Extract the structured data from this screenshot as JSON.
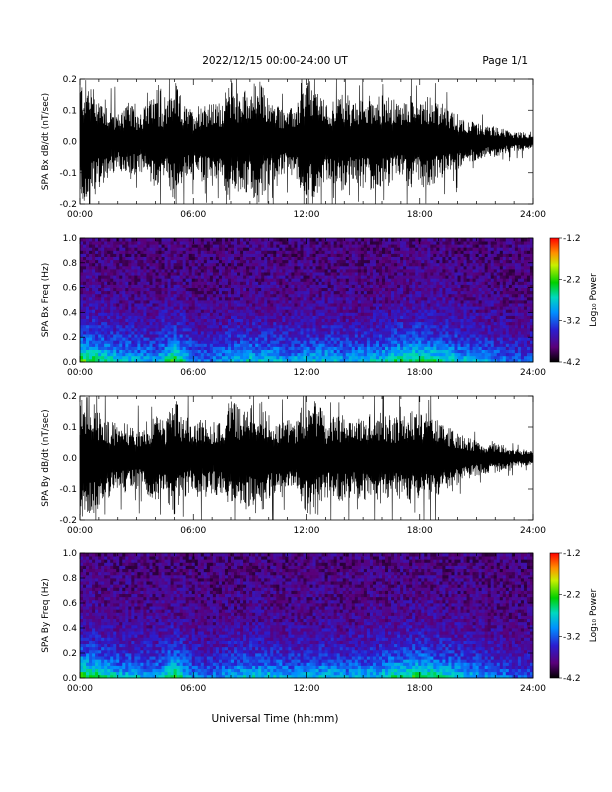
{
  "header": {
    "title": "2022/12/15  00:00-24:00 UT",
    "page": "Page 1/1"
  },
  "footer": {
    "xlabel": "Universal Time (hh:mm)"
  },
  "chart_data": [
    {
      "type": "line",
      "ylabel": "SPA Bx dB/dt (nT/sec)",
      "xlabel": "",
      "x_ticks": [
        "00:00",
        "06:00",
        "12:00",
        "18:00",
        "24:00"
      ],
      "xlim": [
        0,
        24
      ],
      "ylim": [
        -0.2,
        0.2
      ],
      "y_ticks": [
        "-0.2",
        "-0.1",
        "0.0",
        "0.1",
        "0.2"
      ],
      "series": [
        {
          "x": [
            0,
            0.5,
            1,
            1.5,
            2,
            2.5,
            3,
            3.5,
            4,
            4.5,
            5,
            5.5,
            6,
            6.5,
            7,
            7.5,
            8,
            8.5,
            9,
            9.5,
            10,
            10.5,
            11,
            11.5,
            12,
            12.5,
            13,
            13.5,
            14,
            14.5,
            15,
            15.5,
            16,
            16.5,
            17,
            17.5,
            18,
            18.5,
            19,
            19.5,
            20,
            20.5,
            21,
            21.5,
            22,
            22.5,
            23,
            23.5,
            24
          ],
          "amplitude": [
            0.2,
            0.2,
            0.15,
            0.12,
            0.09,
            0.13,
            0.1,
            0.12,
            0.15,
            0.11,
            0.2,
            0.12,
            0.1,
            0.14,
            0.12,
            0.13,
            0.2,
            0.16,
            0.18,
            0.2,
            0.14,
            0.12,
            0.1,
            0.12,
            0.2,
            0.2,
            0.12,
            0.14,
            0.16,
            0.12,
            0.14,
            0.16,
            0.15,
            0.14,
            0.12,
            0.15,
            0.14,
            0.16,
            0.12,
            0.1,
            0.09,
            0.07,
            0.06,
            0.05,
            0.05,
            0.04,
            0.03,
            0.03,
            0.02
          ]
        }
      ],
      "grid": false
    },
    {
      "type": "heatmap",
      "ylabel": "SPA Bx Freq (Hz)",
      "x_ticks": [
        "00:00",
        "06:00",
        "12:00",
        "18:00",
        "24:00"
      ],
      "xlim": [
        0,
        24
      ],
      "ylim": [
        0,
        1.0
      ],
      "y_ticks": [
        "0.0",
        "0.2",
        "0.4",
        "0.6",
        "0.8",
        "1.0"
      ],
      "colorbar": {
        "label": "Log₁₀ Power",
        "ticks": [
          "-1.2",
          "-2.2",
          "-3.2",
          "-4.2"
        ],
        "range": [
          -4.2,
          -1.2
        ]
      },
      "activity_profile": {
        "x": [
          0,
          1,
          2,
          3,
          4,
          5,
          6,
          7,
          8,
          9,
          10,
          11,
          12,
          13,
          14,
          15,
          16,
          17,
          18,
          19,
          20,
          21,
          22,
          23,
          24
        ],
        "intensity": [
          0.9,
          0.75,
          0.6,
          0.55,
          0.5,
          0.85,
          0.45,
          0.4,
          0.55,
          0.6,
          0.6,
          0.5,
          0.55,
          0.6,
          0.5,
          0.55,
          0.6,
          0.75,
          0.8,
          0.7,
          0.6,
          0.5,
          0.45,
          0.35,
          0.3
        ]
      }
    },
    {
      "type": "line",
      "ylabel": "SPA By dB/dt (nT/sec)",
      "x_ticks": [
        "00:00",
        "06:00",
        "12:00",
        "18:00",
        "24:00"
      ],
      "xlim": [
        0,
        24
      ],
      "ylim": [
        -0.2,
        0.2
      ],
      "y_ticks": [
        "-0.2",
        "-0.1",
        "0.0",
        "0.1",
        "0.2"
      ],
      "series": [
        {
          "x": [
            0,
            0.5,
            1,
            1.5,
            2,
            2.5,
            3,
            3.5,
            4,
            4.5,
            5,
            5.5,
            6,
            6.5,
            7,
            7.5,
            8,
            8.5,
            9,
            9.5,
            10,
            10.5,
            11,
            11.5,
            12,
            12.5,
            13,
            13.5,
            14,
            14.5,
            15,
            15.5,
            16,
            16.5,
            17,
            17.5,
            18,
            18.5,
            19,
            19.5,
            20,
            20.5,
            21,
            21.5,
            22,
            22.5,
            23,
            23.5,
            24
          ],
          "amplitude": [
            0.2,
            0.2,
            0.16,
            0.13,
            0.1,
            0.12,
            0.1,
            0.11,
            0.15,
            0.12,
            0.2,
            0.13,
            0.1,
            0.13,
            0.12,
            0.13,
            0.19,
            0.16,
            0.17,
            0.2,
            0.14,
            0.12,
            0.11,
            0.12,
            0.2,
            0.2,
            0.13,
            0.13,
            0.14,
            0.12,
            0.14,
            0.15,
            0.15,
            0.14,
            0.13,
            0.15,
            0.14,
            0.15,
            0.12,
            0.1,
            0.09,
            0.07,
            0.06,
            0.05,
            0.05,
            0.04,
            0.03,
            0.03,
            0.02
          ]
        }
      ],
      "grid": false
    },
    {
      "type": "heatmap",
      "ylabel": "SPA By Freq (Hz)",
      "x_ticks": [
        "00:00",
        "06:00",
        "12:00",
        "18:00",
        "24:00"
      ],
      "xlim": [
        0,
        24
      ],
      "ylim": [
        0,
        1.0
      ],
      "y_ticks": [
        "0.0",
        "0.2",
        "0.4",
        "0.6",
        "0.8",
        "1.0"
      ],
      "colorbar": {
        "label": "Log₁₀ Power",
        "ticks": [
          "-1.2",
          "-2.2",
          "-3.2",
          "-4.2"
        ],
        "range": [
          -4.2,
          -1.2
        ]
      },
      "activity_profile": {
        "x": [
          0,
          1,
          2,
          3,
          4,
          5,
          6,
          7,
          8,
          9,
          10,
          11,
          12,
          13,
          14,
          15,
          16,
          17,
          18,
          19,
          20,
          21,
          22,
          23,
          24
        ],
        "intensity": [
          0.9,
          0.75,
          0.6,
          0.55,
          0.5,
          0.85,
          0.45,
          0.4,
          0.55,
          0.6,
          0.6,
          0.5,
          0.55,
          0.6,
          0.5,
          0.55,
          0.6,
          0.75,
          0.8,
          0.7,
          0.6,
          0.5,
          0.45,
          0.35,
          0.3
        ]
      }
    }
  ]
}
